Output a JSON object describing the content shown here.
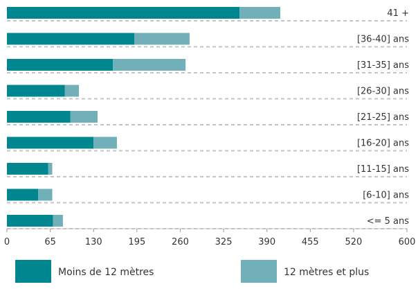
{
  "chart_data": {
    "type": "bar",
    "orientation": "horizontal",
    "stacked": true,
    "categories": [
      "41 +",
      "[36-40] ans",
      "[31-35] ans",
      "[26-30] ans",
      "[21-25] ans",
      "[16-20] ans",
      "[11-15] ans",
      "[6-10] ans",
      "<= 5 ans"
    ],
    "series": [
      {
        "name": "Moins de 12 mètres",
        "color": "#00868f",
        "values": [
          349,
          191,
          159,
          87,
          95,
          130,
          62,
          47,
          69
        ]
      },
      {
        "name": "12 mètres et plus",
        "color": "#72b0b9",
        "values": [
          61,
          83,
          109,
          21,
          41,
          35,
          6,
          21,
          15
        ]
      }
    ],
    "xlim": [
      0,
      600
    ],
    "xticks": [
      "0",
      "65",
      "130",
      "195",
      "260",
      "325",
      "390",
      "455",
      "520",
      "600"
    ],
    "xtick_values": [
      0,
      65,
      130,
      195,
      260,
      325,
      390,
      455,
      520,
      600
    ],
    "title": "",
    "xlabel": "",
    "ylabel": "",
    "legend_position": "bottom",
    "grid": "dashed horizontal separators"
  }
}
